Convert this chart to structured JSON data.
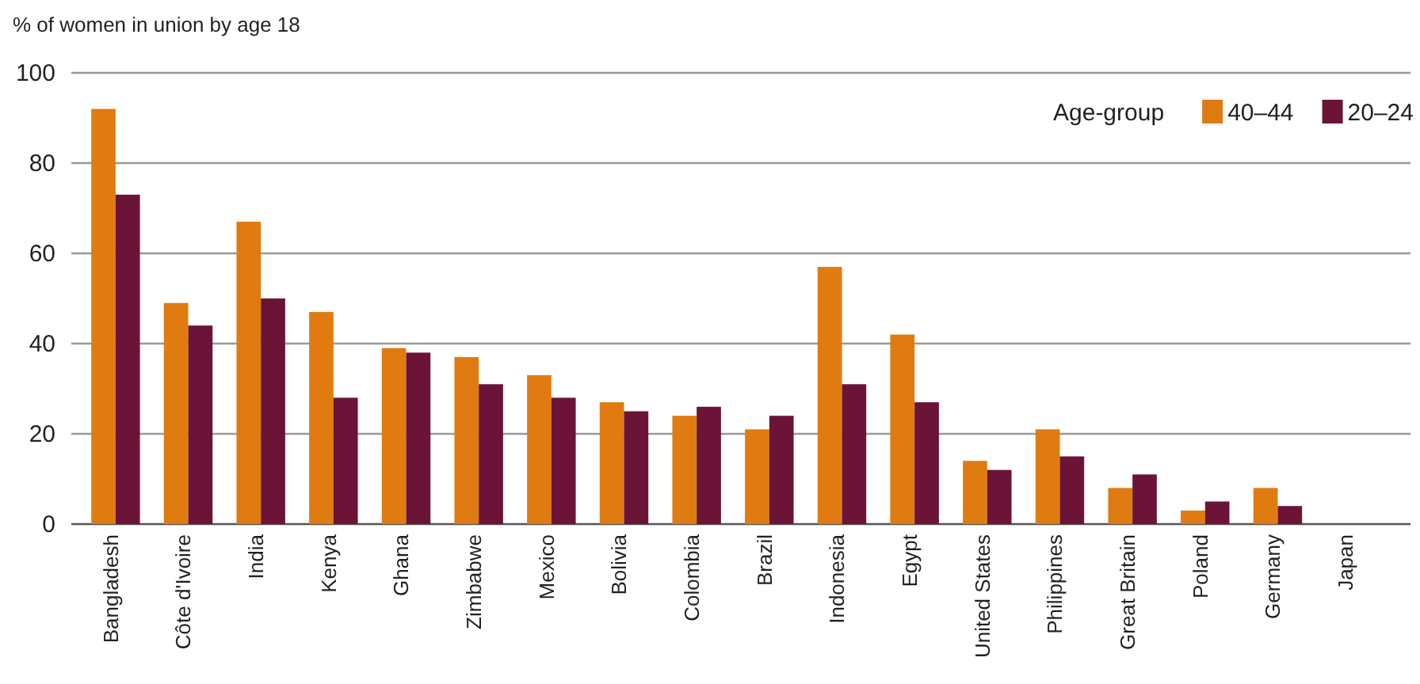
{
  "chart_data": {
    "type": "bar",
    "ylabel": "% of women in union by age 18",
    "legend_title": "Age-group",
    "legend": "top right",
    "grid": "y",
    "categories": [
      "Bangladesh",
      "Côte d'Ivoire",
      "India",
      "Kenya",
      "Ghana",
      "Zimbabwe",
      "Mexico",
      "Bolivia",
      "Colombia",
      "Brazil",
      "Indonesia",
      "Egypt",
      "United States",
      "Philippines",
      "Great Britain",
      "Poland",
      "Germany",
      "Japan"
    ],
    "series": [
      {
        "name": "40–44",
        "color": "#e07b12",
        "values": [
          92,
          49,
          67,
          47,
          39,
          37,
          33,
          27,
          24,
          21,
          57,
          42,
          14,
          21,
          8,
          3,
          8,
          null
        ]
      },
      {
        "name": "20–24",
        "color": "#6b1438",
        "values": [
          73,
          44,
          50,
          28,
          38,
          31,
          28,
          25,
          26,
          24,
          31,
          27,
          12,
          15,
          11,
          5,
          4,
          null
        ]
      }
    ],
    "ylim": [
      0,
      100
    ],
    "yticks": [
      0,
      20,
      40,
      60,
      80,
      100
    ]
  }
}
